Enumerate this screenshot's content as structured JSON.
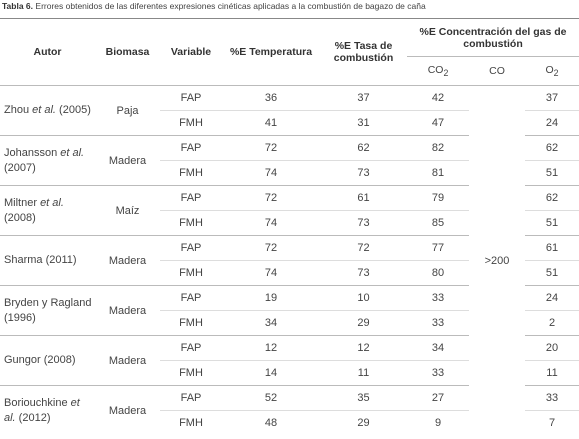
{
  "caption": {
    "label": "Tabla 6.",
    "text": "Errores obtenidos de las diferentes expresiones cinéticas aplicadas a la combustión de bagazo de caña"
  },
  "header": {
    "author": "Autor",
    "biomass": "Biomasa",
    "variable": "Variable",
    "temp": "%E Temperatura",
    "rate": "%E Tasa de combustión",
    "gas": "%E Concentración del gas de combustión",
    "co2": [
      "CO",
      "2"
    ],
    "co": "CO",
    "o2": [
      "O",
      "2"
    ]
  },
  "co_value": ">200",
  "groups": [
    {
      "author": [
        "Zhou ",
        "et al.",
        " (2005)"
      ],
      "biomass": "Paja",
      "rows": [
        {
          "variable": "FAP",
          "temp": 36,
          "rate": 37,
          "co2": 42,
          "o2": 37
        },
        {
          "variable": "FMH",
          "temp": 41,
          "rate": 31,
          "co2": 47,
          "o2": 24
        }
      ]
    },
    {
      "author": [
        "Johansson ",
        "et al.",
        " (2007)"
      ],
      "biomass": "Madera",
      "rows": [
        {
          "variable": "FAP",
          "temp": 72,
          "rate": 62,
          "co2": 82,
          "o2": 62
        },
        {
          "variable": "FMH",
          "temp": 74,
          "rate": 73,
          "co2": 81,
          "o2": 51
        }
      ]
    },
    {
      "author": [
        "Miltner ",
        "et al.",
        " (2008)"
      ],
      "biomass": "Maíz",
      "rows": [
        {
          "variable": "FAP",
          "temp": 72,
          "rate": 61,
          "co2": 79,
          "o2": 62
        },
        {
          "variable": "FMH",
          "temp": 74,
          "rate": 73,
          "co2": 85,
          "o2": 51
        }
      ]
    },
    {
      "author": [
        "Sharma (2011)"
      ],
      "biomass": "Madera",
      "rows": [
        {
          "variable": "FAP",
          "temp": 72,
          "rate": 72,
          "co2": 77,
          "o2": 61
        },
        {
          "variable": "FMH",
          "temp": 74,
          "rate": 73,
          "co2": 80,
          "o2": 51
        }
      ]
    },
    {
      "author": [
        "Bryden y Ragland (1996)"
      ],
      "biomass": "Madera",
      "rows": [
        {
          "variable": "FAP",
          "temp": 19,
          "rate": 10,
          "co2": 33,
          "o2": 24
        },
        {
          "variable": "FMH",
          "temp": 34,
          "rate": 29,
          "co2": 33,
          "o2": 2
        }
      ]
    },
    {
      "author": [
        "Gungor (2008)"
      ],
      "biomass": "Madera",
      "rows": [
        {
          "variable": "FAP",
          "temp": 12,
          "rate": 12,
          "co2": 34,
          "o2": 20
        },
        {
          "variable": "FMH",
          "temp": 14,
          "rate": 11,
          "co2": 33,
          "o2": 11
        }
      ]
    },
    {
      "author": [
        "Boriouchkine ",
        "et al.",
        " (2012)"
      ],
      "biomass": "Madera",
      "rows": [
        {
          "variable": "FAP",
          "temp": 52,
          "rate": 35,
          "co2": 27,
          "o2": 33
        },
        {
          "variable": "FMH",
          "temp": 48,
          "rate": 29,
          "co2": 9,
          "o2": 7
        }
      ]
    }
  ]
}
